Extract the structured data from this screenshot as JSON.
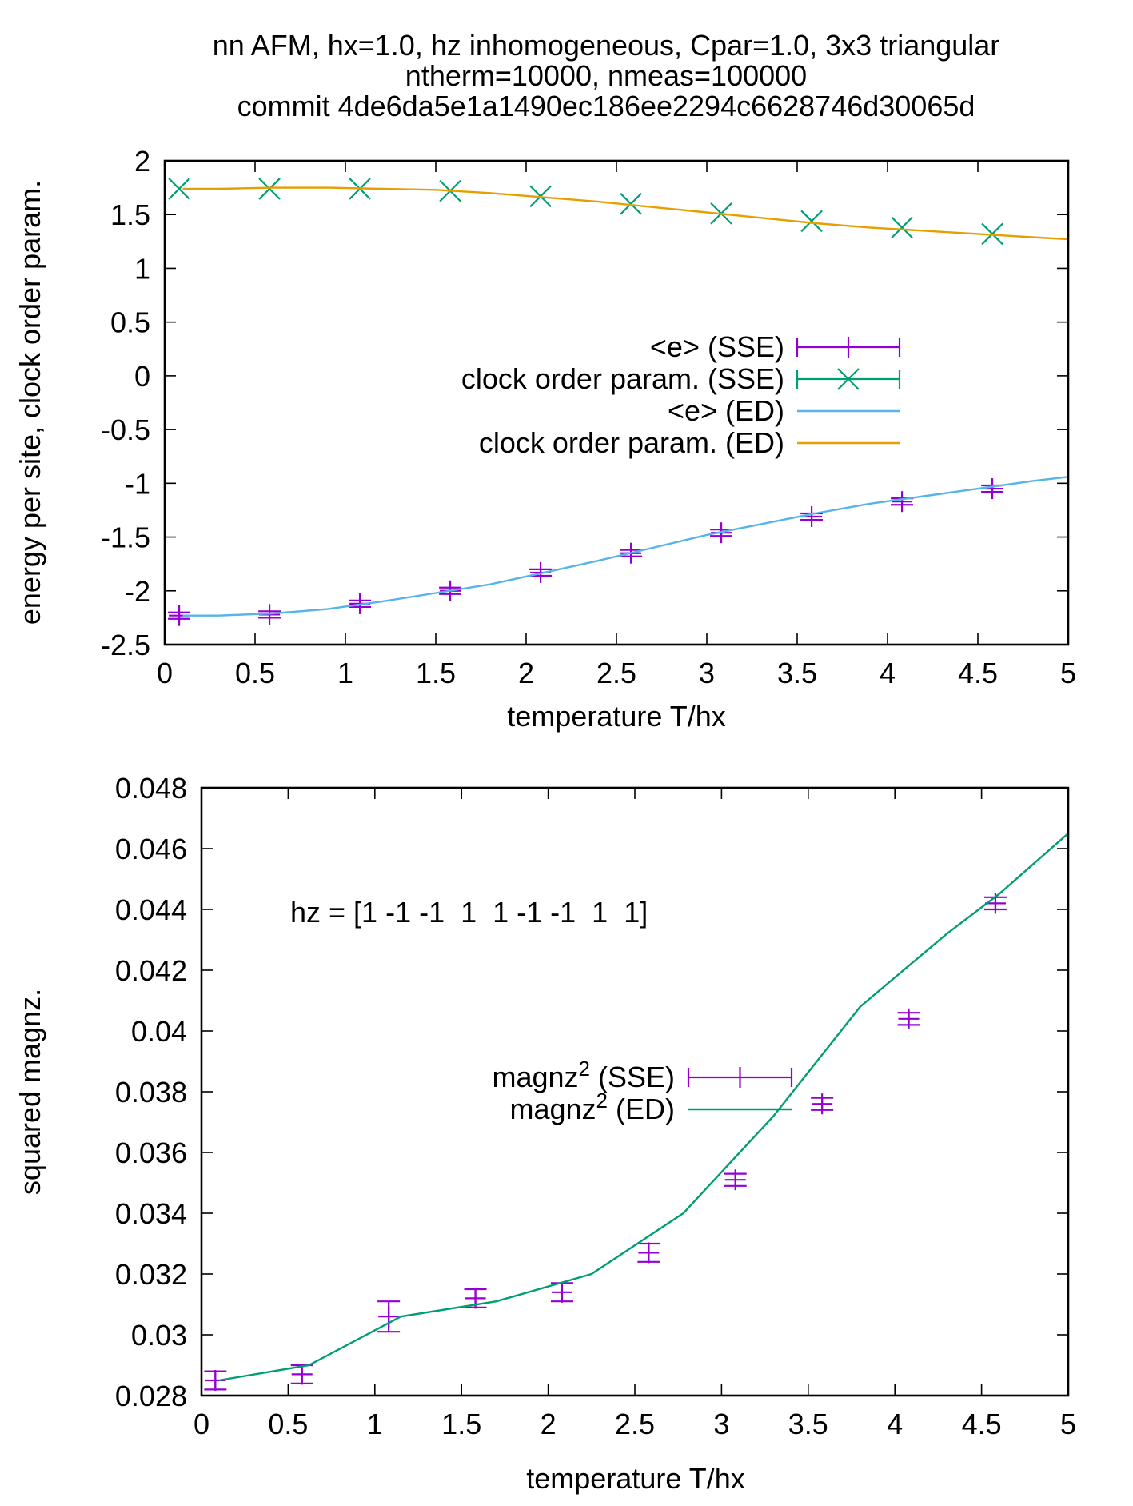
{
  "title_lines": [
    "nn AFM, hx=1.0, hz inhomogeneous, Cpar=1.0, 3x3 triangular",
    "ntherm=10000, nmeas=100000",
    "commit 4de6da5e1a1490ec186ee2294c6628746d30065d"
  ],
  "colors": {
    "sse": "#9400d3",
    "clock_sse": "#009e73",
    "e_ed": "#56b4e9",
    "clock_ed": "#e69f00",
    "magnz_ed": "#009e73"
  },
  "chart_data": [
    {
      "type": "line",
      "xlabel": "temperature T/hx",
      "ylabel": "energy per site, clock order param.",
      "xlim": [
        0,
        5
      ],
      "ylim": [
        -2.5,
        2
      ],
      "xticks": [
        "0",
        "0.5",
        "1",
        "1.5",
        "2",
        "2.5",
        "3",
        "3.5",
        "4",
        "4.5",
        "5"
      ],
      "yticks": [
        "-2.5",
        "-2",
        "-1.5",
        "-1",
        "-0.5",
        "0",
        "0.5",
        "1",
        "1.5",
        "2"
      ],
      "legend_position": "center-right",
      "series": [
        {
          "name": "<e> (SSE)",
          "style": "points-errorbars",
          "marker": "plus",
          "color": "#9400d3",
          "x": [
            0.08,
            0.58,
            1.08,
            1.58,
            2.08,
            2.58,
            3.08,
            3.58,
            4.08,
            4.58
          ],
          "y": [
            -2.23,
            -2.22,
            -2.12,
            -2.0,
            -1.83,
            -1.65,
            -1.46,
            -1.31,
            -1.17,
            -1.05
          ],
          "yerr": [
            0.03,
            0.03,
            0.03,
            0.03,
            0.03,
            0.03,
            0.03,
            0.03,
            0.03,
            0.03
          ]
        },
        {
          "name": "clock order param. (SSE)",
          "style": "points-errorbars",
          "marker": "cross",
          "color": "#009e73",
          "x": [
            0.08,
            0.58,
            1.08,
            1.58,
            2.08,
            2.58,
            3.08,
            3.58,
            4.08,
            4.58
          ],
          "y": [
            1.74,
            1.74,
            1.74,
            1.72,
            1.67,
            1.6,
            1.51,
            1.44,
            1.38,
            1.32
          ],
          "yerr": [
            0.0,
            0.0,
            0.0,
            0.0,
            0.0,
            0.0,
            0.0,
            0.0,
            0.0,
            0.0
          ]
        },
        {
          "name": "<e> (ED)",
          "style": "line",
          "color": "#56b4e9",
          "x": [
            0.1,
            0.3,
            0.6,
            0.9,
            1.2,
            1.5,
            1.8,
            2.1,
            2.4,
            2.7,
            3.0,
            3.3,
            3.6,
            3.9,
            4.2,
            4.5,
            4.8,
            5.0
          ],
          "y": [
            -2.23,
            -2.23,
            -2.21,
            -2.17,
            -2.1,
            -2.02,
            -1.94,
            -1.83,
            -1.72,
            -1.6,
            -1.48,
            -1.38,
            -1.28,
            -1.19,
            -1.12,
            -1.05,
            -0.98,
            -0.94
          ]
        },
        {
          "name": "clock order param. (ED)",
          "style": "line",
          "color": "#e69f00",
          "x": [
            0.1,
            0.3,
            0.6,
            0.9,
            1.2,
            1.5,
            1.8,
            2.1,
            2.4,
            2.7,
            3.0,
            3.3,
            3.6,
            3.9,
            4.2,
            4.5,
            4.8,
            5.0
          ],
          "y": [
            1.74,
            1.74,
            1.75,
            1.75,
            1.74,
            1.73,
            1.7,
            1.66,
            1.62,
            1.57,
            1.52,
            1.47,
            1.42,
            1.38,
            1.35,
            1.32,
            1.29,
            1.27
          ]
        }
      ]
    },
    {
      "type": "line",
      "xlabel": "temperature T/hx",
      "ylabel": "squared magnz.",
      "xlim": [
        0,
        5
      ],
      "ylim": [
        0.028,
        0.048
      ],
      "xticks": [
        "0",
        "0.5",
        "1",
        "1.5",
        "2",
        "2.5",
        "3",
        "3.5",
        "4",
        "4.5",
        "5"
      ],
      "yticks": [
        "0.028",
        "0.03",
        "0.032",
        "0.034",
        "0.036",
        "0.038",
        "0.04",
        "0.042",
        "0.044",
        "0.046",
        "0.048"
      ],
      "legend_position": "center",
      "annotation": "hz = [1 -1 -1  1  1 -1 -1  1  1]",
      "series": [
        {
          "name": "magnz",
          "name_sup": "2",
          "name_rest": " (SSE)",
          "style": "points-errorbars",
          "marker": "plus",
          "color": "#9400d3",
          "x": [
            0.08,
            0.58,
            1.08,
            1.58,
            2.08,
            2.58,
            3.08,
            3.58,
            4.08,
            4.58
          ],
          "y": [
            0.0285,
            0.0287,
            0.0306,
            0.0312,
            0.0314,
            0.0327,
            0.0351,
            0.0376,
            0.0404,
            0.0442
          ],
          "yerr": [
            0.0003,
            0.0003,
            0.0005,
            0.0003,
            0.0003,
            0.0003,
            0.0002,
            0.0002,
            0.0002,
            0.0002
          ]
        },
        {
          "name": "magnz",
          "name_sup": "2",
          "name_rest": " (ED)",
          "style": "line",
          "color": "#009e73",
          "x": [
            0.1,
            0.62,
            1.15,
            1.7,
            2.25,
            2.78,
            3.3,
            3.8,
            4.3,
            4.6,
            5.0
          ],
          "y": [
            0.0285,
            0.029,
            0.0306,
            0.0311,
            0.032,
            0.034,
            0.0372,
            0.0408,
            0.0432,
            0.0445,
            0.0465
          ]
        }
      ]
    }
  ]
}
